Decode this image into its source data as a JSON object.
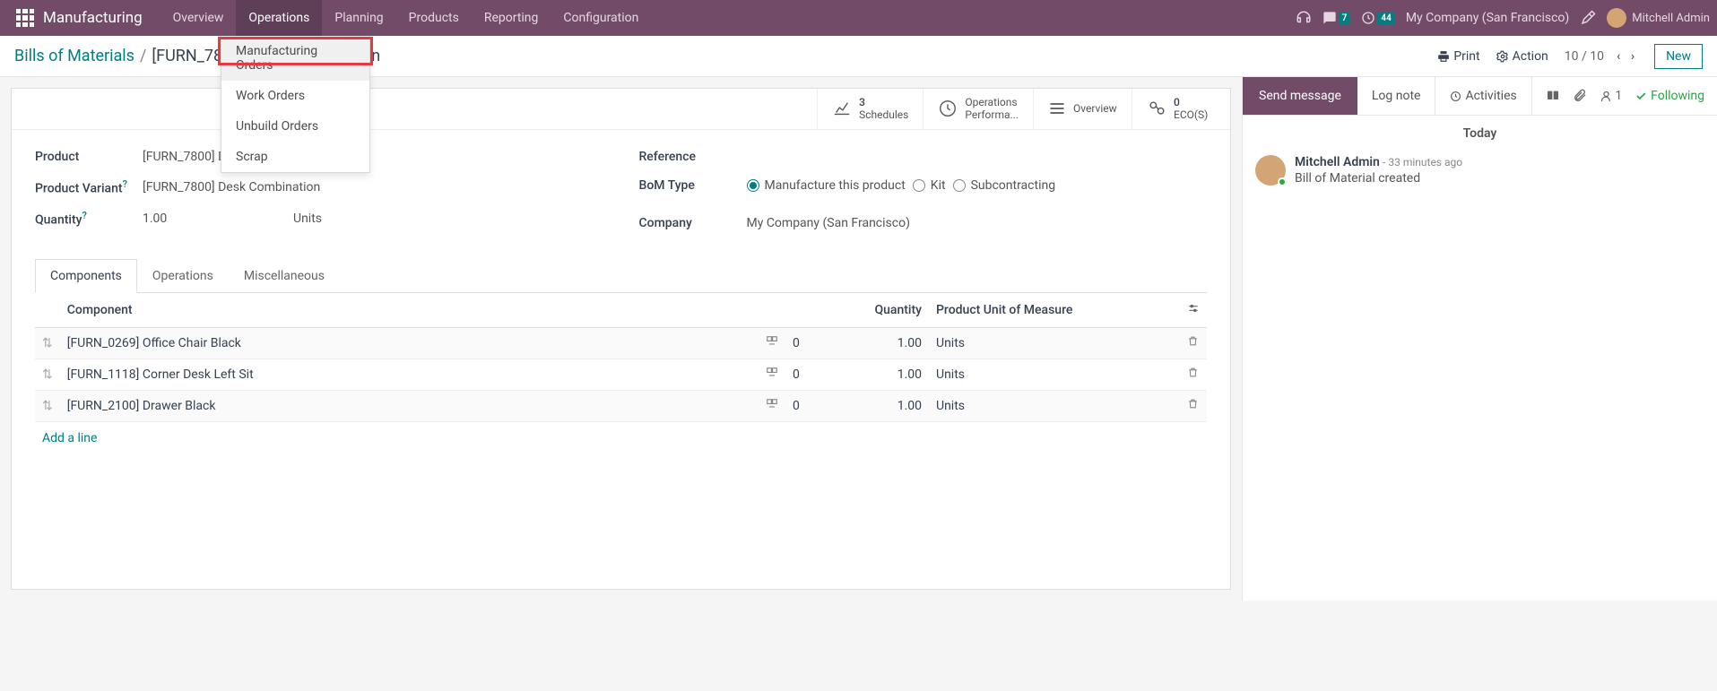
{
  "topnav": {
    "brand": "Manufacturing",
    "items": [
      "Overview",
      "Operations",
      "Planning",
      "Products",
      "Reporting",
      "Configuration"
    ],
    "active_index": 1,
    "messages_badge": "7",
    "clock_badge": "44",
    "company": "My Company (San Francisco)",
    "username": "Mitchell Admin"
  },
  "dropdown": {
    "items": [
      "Manufacturing Orders",
      "Work Orders",
      "Unbuild Orders",
      "Scrap"
    ]
  },
  "breadcrumb": {
    "root": "Bills of Materials",
    "current": "[FURN_7800] Desk Combination"
  },
  "toolbar": {
    "print": "Print",
    "action": "Action",
    "pager": "10 / 10",
    "new": "New"
  },
  "stats": [
    {
      "num": "3",
      "label": "Schedules"
    },
    {
      "num": "",
      "label1": "Operations",
      "label2": "Performa..."
    },
    {
      "num": "",
      "label": "Overview"
    },
    {
      "num": "0",
      "label": "ECO(S)"
    }
  ],
  "form": {
    "product_label": "Product",
    "product": "[FURN_7800] Desk Combination",
    "variant_label": "Product Variant",
    "variant": "[FURN_7800] Desk Combination",
    "quantity_label": "Quantity",
    "quantity": "1.00",
    "quantity_uom": "Units",
    "reference_label": "Reference",
    "bom_type_label": "BoM Type",
    "bom_opts": [
      "Manufacture this product",
      "Kit",
      "Subcontracting"
    ],
    "company_label": "Company",
    "company": "My Company (San Francisco)"
  },
  "tabs": [
    "Components",
    "Operations",
    "Miscellaneous"
  ],
  "table": {
    "cols": {
      "component": "Component",
      "qty": "Quantity",
      "uom": "Product Unit of Measure"
    },
    "rows": [
      {
        "name": "[FURN_0269] Office Chair Black",
        "extra": "0",
        "qty": "1.00",
        "uom": "Units"
      },
      {
        "name": "[FURN_1118] Corner Desk Left Sit",
        "extra": "0",
        "qty": "1.00",
        "uom": "Units"
      },
      {
        "name": "[FURN_2100] Drawer Black",
        "extra": "0",
        "qty": "1.00",
        "uom": "Units"
      }
    ],
    "add_line": "Add a line"
  },
  "chatter": {
    "send": "Send message",
    "log": "Log note",
    "activities": "Activities",
    "follower_count": "1",
    "following": "Following",
    "today": "Today",
    "msg_author": "Mitchell Admin",
    "msg_time": "- 33 minutes ago",
    "msg_text": "Bill of Material created"
  },
  "colors": {
    "primary": "#714B67",
    "teal": "#017e84",
    "green": "#28a745"
  }
}
